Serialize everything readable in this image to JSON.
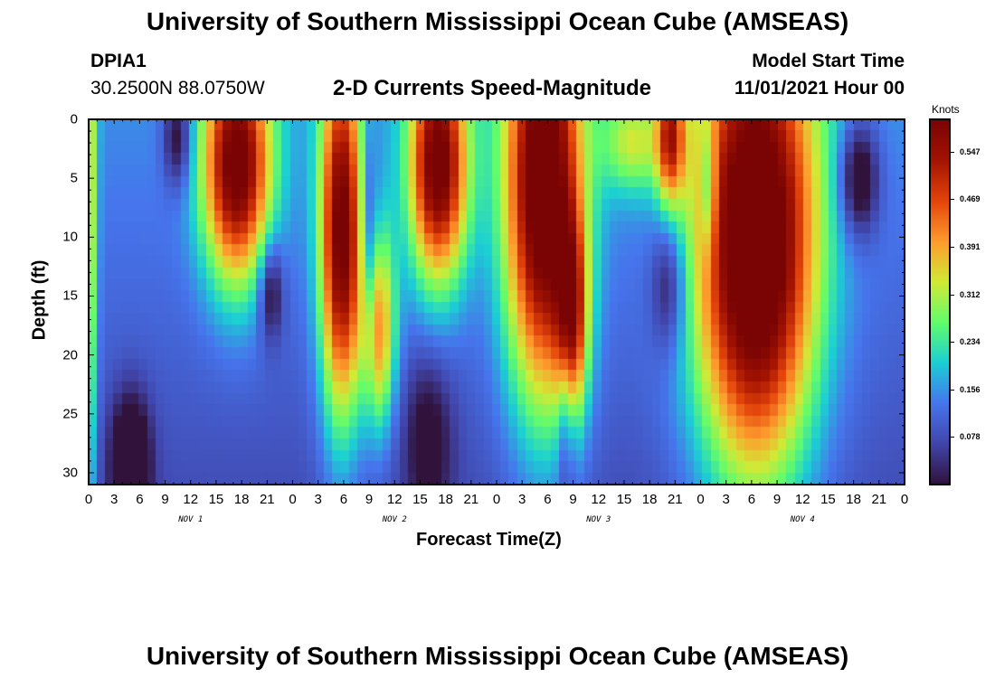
{
  "header": {
    "title": "University of Southern Mississippi Ocean Cube (AMSEAS)",
    "station_id": "DPIA1",
    "coords": "30.2500N  88.0750W",
    "plot_title": "2-D Currents Speed-Magnitude",
    "model_start_label": "Model Start Time",
    "model_start_value": "11/01/2021 Hour 00"
  },
  "footer": {
    "title": "University of Southern Mississippi Ocean Cube (AMSEAS)"
  },
  "chart_data": {
    "type": "heatmap",
    "xlabel": "Forecast Time(Z)",
    "ylabel": "Depth (ft)",
    "x_range_hours": [
      0,
      96
    ],
    "ylim": [
      0,
      31
    ],
    "x_tick_labels": [
      "0",
      "3",
      "6",
      "9",
      "12",
      "15",
      "18",
      "21",
      "0",
      "3",
      "6",
      "9",
      "12",
      "15",
      "18",
      "21",
      "0",
      "3",
      "6",
      "9",
      "12",
      "15",
      "18",
      "21",
      "0",
      "3",
      "6",
      "9",
      "12",
      "15",
      "18",
      "21",
      "0"
    ],
    "y_ticks": [
      0,
      5,
      10,
      15,
      20,
      25,
      30
    ],
    "day_labels": [
      "NOV 1",
      "NOV 2",
      "NOV 3",
      "NOV 4"
    ],
    "colorbar": {
      "label": "Knots",
      "ticks": [
        "0.547",
        "0.469",
        "0.391",
        "0.312",
        "0.234",
        "0.156",
        "0.078"
      ],
      "range": [
        0,
        0.6
      ]
    },
    "colormap": [
      "#30123b",
      "#4145ab",
      "#4675ed",
      "#1bcfd4",
      "#62fc6b",
      "#d2e935",
      "#fe9b2d",
      "#e3440a",
      "#a41302",
      "#7a0403"
    ],
    "features": [
      {
        "t": 0.3,
        "d": 8,
        "st": 0.6,
        "sd": 20,
        "a": 0.18
      },
      {
        "t": 10.5,
        "d": 1.5,
        "st": 1.2,
        "sd": 3,
        "a": -0.16
      },
      {
        "t": 17.5,
        "d": 4,
        "st": 2.8,
        "sd": 7,
        "a": 0.5
      },
      {
        "t": 21.5,
        "d": 14.5,
        "st": 1.0,
        "sd": 3,
        "a": -0.16
      },
      {
        "t": 5,
        "d": 29,
        "st": 1.6,
        "sd": 4,
        "a": -0.2
      },
      {
        "t": 29.8,
        "d": 10,
        "st": 1.8,
        "sd": 11,
        "a": 0.5
      },
      {
        "t": 34.2,
        "d": 18,
        "st": 1.4,
        "sd": 6,
        "a": 0.3
      },
      {
        "t": 33.1,
        "d": 11,
        "st": 0.7,
        "sd": 7,
        "a": -0.14
      },
      {
        "t": 41.2,
        "d": 4,
        "st": 2.4,
        "sd": 7,
        "a": 0.5
      },
      {
        "t": 40,
        "d": 27,
        "st": 2.0,
        "sd": 5,
        "a": -0.12
      },
      {
        "t": 53.6,
        "d": 6,
        "st": 3.2,
        "sd": 13,
        "a": 0.55
      },
      {
        "t": 57,
        "d": 17,
        "st": 1.3,
        "sd": 6,
        "a": 0.3
      },
      {
        "t": 56.2,
        "d": 26,
        "st": 0.7,
        "sd": 5,
        "a": -0.1
      },
      {
        "t": 64,
        "d": 2,
        "st": 2.4,
        "sd": 3,
        "a": 0.18
      },
      {
        "t": 68.5,
        "d": 1.5,
        "st": 1.2,
        "sd": 4,
        "a": 0.32
      },
      {
        "t": 68.3,
        "d": 14,
        "st": 1.5,
        "sd": 4,
        "a": -0.14
      },
      {
        "t": 73,
        "d": 6,
        "st": 0.6,
        "sd": 4,
        "a": -0.14
      },
      {
        "t": 78.5,
        "d": 11,
        "st": 5.0,
        "sd": 14,
        "a": 0.6
      },
      {
        "t": 90.7,
        "d": 5,
        "st": 1.6,
        "sd": 3.5,
        "a": -0.2
      }
    ]
  }
}
